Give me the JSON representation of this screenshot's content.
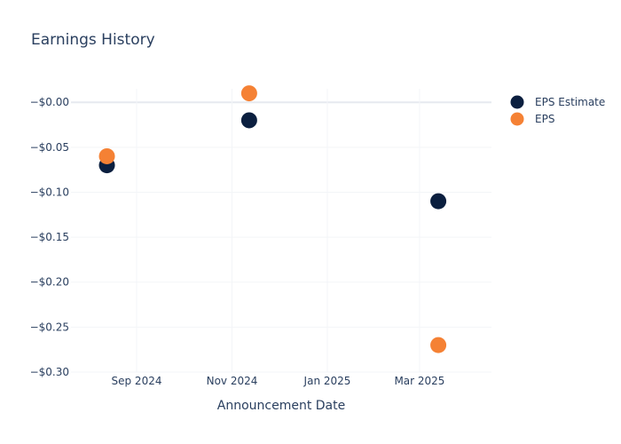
{
  "chart_data": {
    "type": "scatter",
    "title": "Earnings History",
    "xlabel": "Announcement Date",
    "ylabel": "",
    "x_axis_type": "date",
    "xlim": [
      "2024-07-21",
      "2025-04-16"
    ],
    "ylim": [
      -0.3,
      0.015
    ],
    "x_ticks": [
      {
        "value": "2024-09-01",
        "label": "Sep 2024"
      },
      {
        "value": "2024-11-01",
        "label": "Nov 2024"
      },
      {
        "value": "2025-01-01",
        "label": "Jan 2025"
      },
      {
        "value": "2025-03-01",
        "label": "Mar 2025"
      }
    ],
    "y_ticks": [
      {
        "value": 0.0,
        "label": "−$0.00"
      },
      {
        "value": -0.05,
        "label": "−$0.05"
      },
      {
        "value": -0.1,
        "label": "−$0.10"
      },
      {
        "value": -0.15,
        "label": "−$0.15"
      },
      {
        "value": -0.2,
        "label": "−$0.20"
      },
      {
        "value": -0.25,
        "label": "−$0.25"
      },
      {
        "value": -0.3,
        "label": "−$0.30"
      }
    ],
    "grid": true,
    "legend_position": "top-right",
    "series": [
      {
        "name": "EPS Estimate",
        "color": "#0b1f3f",
        "points": [
          {
            "x": "2024-08-13",
            "y": -0.07
          },
          {
            "x": "2024-11-12",
            "y": -0.02
          },
          {
            "x": "2025-03-13",
            "y": -0.11
          }
        ]
      },
      {
        "name": "EPS",
        "color": "#f58134",
        "points": [
          {
            "x": "2024-08-13",
            "y": -0.06
          },
          {
            "x": "2024-11-12",
            "y": 0.01
          },
          {
            "x": "2025-03-13",
            "y": -0.27
          }
        ]
      }
    ]
  }
}
